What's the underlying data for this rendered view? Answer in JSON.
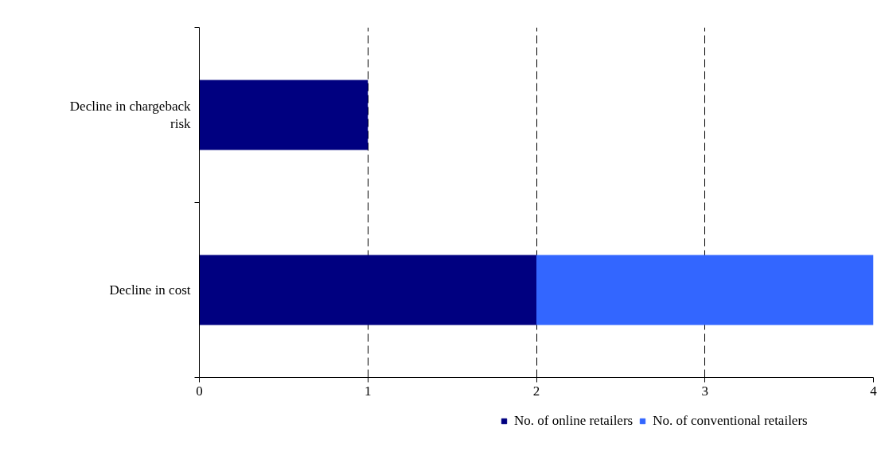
{
  "chart_data": {
    "type": "bar",
    "orientation": "horizontal",
    "stacked": true,
    "categories": [
      "Decline in chargeback risk",
      "Decline in cost"
    ],
    "series": [
      {
        "name": "No. of online retailers",
        "color": "#000080",
        "values": [
          1,
          2
        ]
      },
      {
        "name": "No. of conventional retailers",
        "color": "#3366ff",
        "values": [
          null,
          2
        ]
      }
    ],
    "xlim": [
      0,
      4
    ],
    "xticks": [
      0,
      1,
      2,
      3,
      4
    ],
    "grid": "x",
    "legend": "bottom"
  }
}
